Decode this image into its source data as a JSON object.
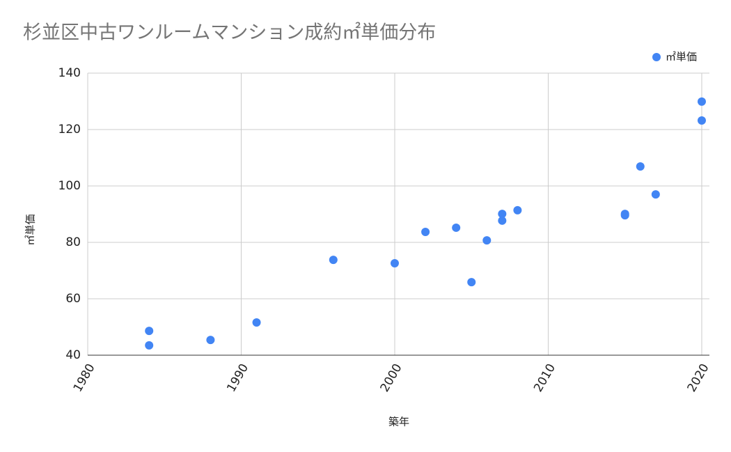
{
  "chart_data": {
    "type": "scatter",
    "title": "杉並区中古ワンルームマンション成約㎡単価分布",
    "x_label": "築年",
    "y_label": "㎡単価",
    "series": [
      {
        "name": "㎡単価",
        "color": "#4285f4",
        "x": [
          1984,
          1984,
          1988,
          1991,
          1996,
          2000,
          2002,
          2004,
          2005,
          2006,
          2007,
          2007,
          2008,
          2015,
          2015,
          2016,
          2017,
          2020,
          2020
        ],
        "values": [
          48.6,
          43.5,
          45.4,
          51.6,
          73.8,
          72.6,
          83.7,
          85.2,
          65.9,
          80.7,
          90.1,
          87.7,
          91.4,
          90.1,
          89.6,
          106.9,
          97.0,
          123.2,
          129.9
        ]
      }
    ],
    "xlim": [
      1980,
      2020.5
    ],
    "xticks": [
      1980,
      1990,
      2000,
      2010,
      2020
    ],
    "ylim": [
      40,
      140
    ],
    "yticks": [
      40,
      60,
      80,
      100,
      120,
      140
    ],
    "grid": true,
    "legend": "top-right"
  }
}
